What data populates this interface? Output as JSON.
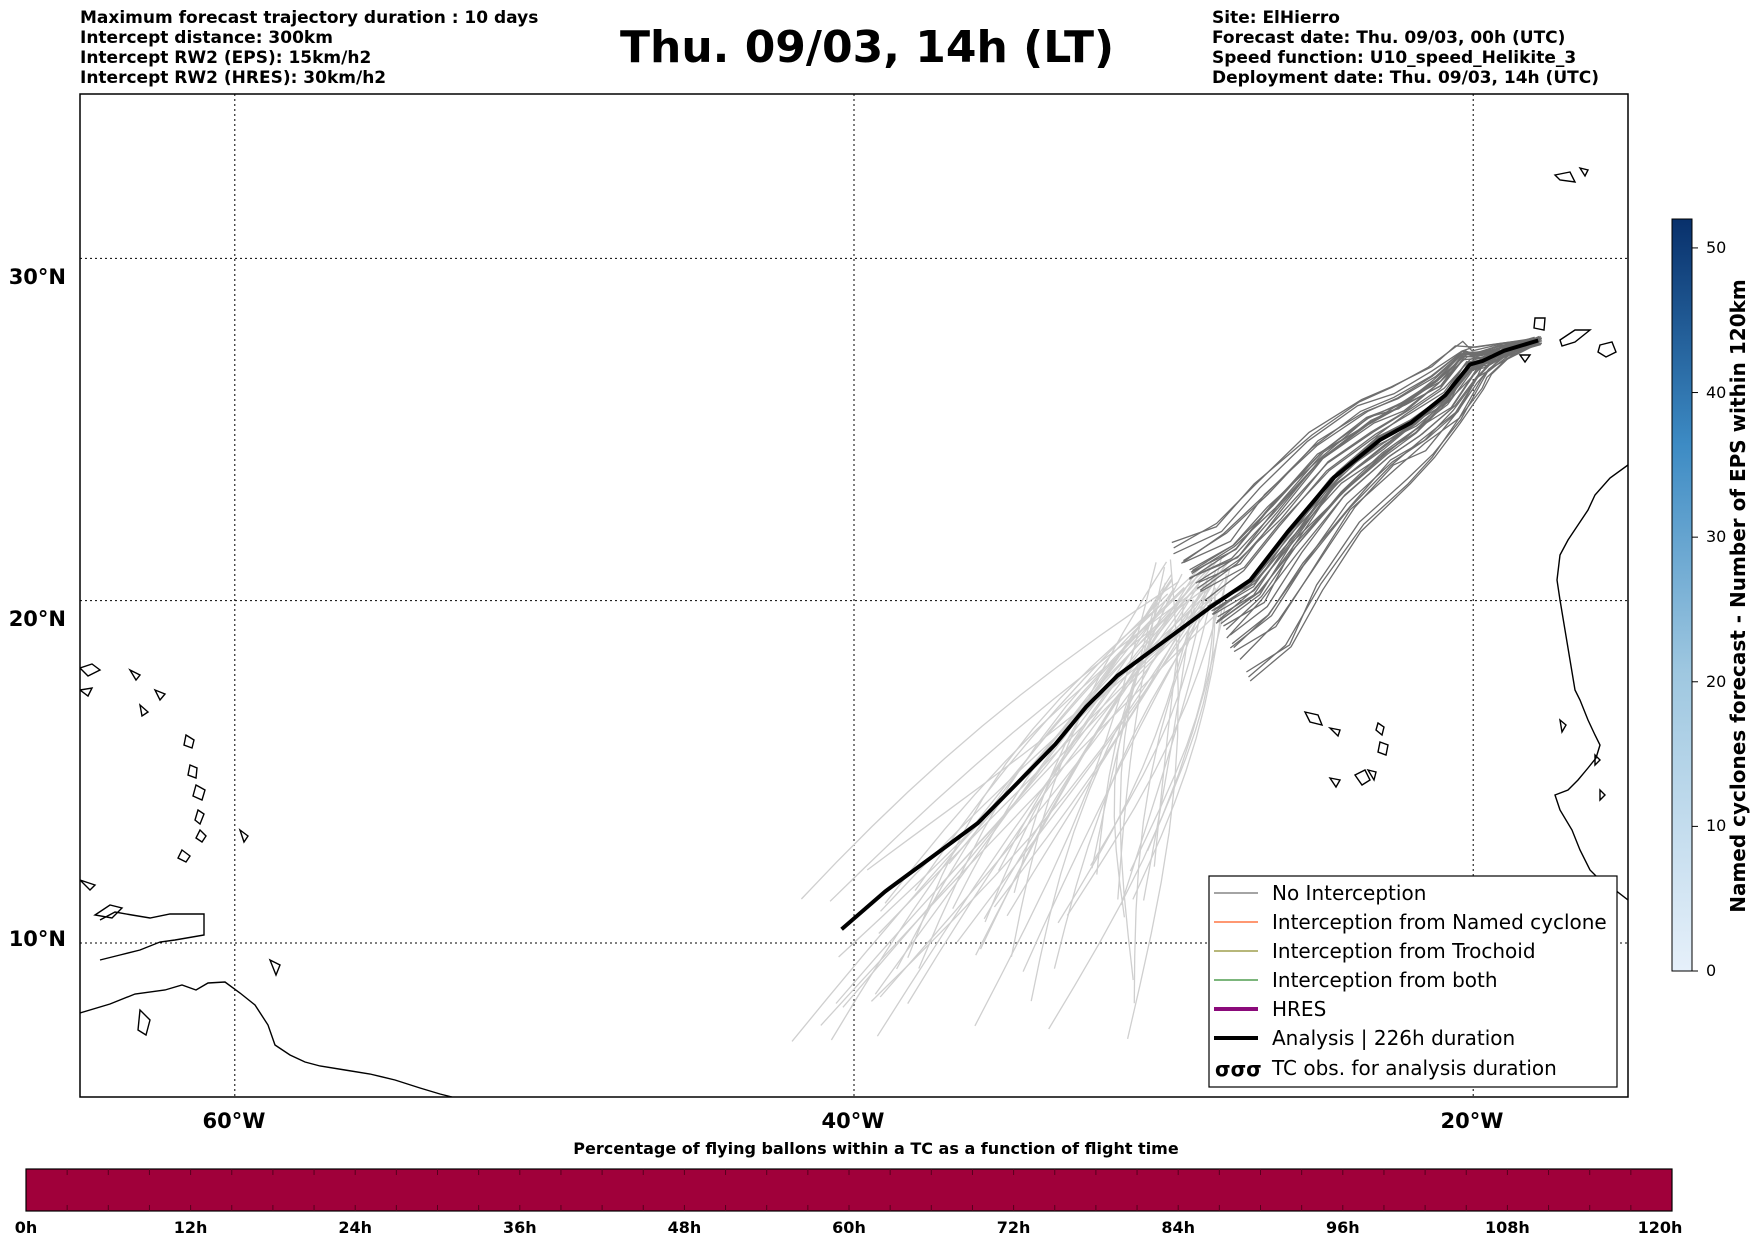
{
  "header": {
    "left": [
      "Maximum forecast trajectory duration : 10 days",
      "Intercept distance: 300km",
      "Intercept RW2 (EPS):  15km/h2",
      "Intercept RW2 (HRES): 30km/h2"
    ],
    "title": "Thu. 09/03, 14h (LT)",
    "right": [
      "Site: ElHierro",
      "Forecast date: Thu. 09/03, 00h (UTC)",
      "Speed function: U10_speed_Helikite_3",
      "Deployment date: Thu. 09/03, 14h (UTC)"
    ]
  },
  "map": {
    "lon_ticks": [
      "60°W",
      "40°W",
      "20°W"
    ],
    "lat_ticks": [
      "30°N",
      "20°N",
      "10°N"
    ],
    "lon_values": [
      -60,
      -40,
      -20
    ],
    "lat_values": [
      30,
      20,
      10
    ],
    "lon_range": [
      -65,
      -15
    ],
    "lat_range": [
      5.5,
      34.8
    ],
    "colors": {
      "no_interception": "#6e6e6e",
      "light_traj": "#cfcfcf",
      "named_cyclone": "#ff5a1f",
      "trochoid": "#8c8c2a",
      "both": "#2e8b2e",
      "hres": "#8b0a7a",
      "analysis": "#000000"
    },
    "analysis_track": [
      [
        -17.9,
        27.6
      ],
      [
        -19.0,
        27.3
      ],
      [
        -19.7,
        27.0
      ],
      [
        -20.1,
        26.9
      ],
      [
        -20.9,
        26.0
      ],
      [
        -22.0,
        25.2
      ],
      [
        -23.0,
        24.7
      ],
      [
        -24.5,
        23.6
      ],
      [
        -26.0,
        22.0
      ],
      [
        -27.2,
        20.6
      ],
      [
        -28.5,
        19.8
      ],
      [
        -30.0,
        18.8
      ],
      [
        -31.5,
        17.8
      ],
      [
        -32.5,
        16.9
      ],
      [
        -33.5,
        15.8
      ],
      [
        -34.8,
        14.6
      ],
      [
        -36.0,
        13.5
      ],
      [
        -37.5,
        12.5
      ],
      [
        -39.0,
        11.5
      ],
      [
        -40.4,
        10.4
      ]
    ]
  },
  "legend": {
    "items": [
      {
        "label": "No Interception",
        "style": "thin",
        "color": "#6e6e6e"
      },
      {
        "label": "Interception from Named cyclone",
        "style": "thin",
        "color": "#ff5a1f"
      },
      {
        "label": "Interception from Trochoid",
        "style": "thin",
        "color": "#8c8c2a"
      },
      {
        "label": "Interception from both",
        "style": "thin",
        "color": "#2e8b2e"
      },
      {
        "label": "HRES",
        "style": "thick",
        "color": "#8b0a7a"
      },
      {
        "label": "Analysis | 226h duration",
        "style": "thick",
        "color": "#000000"
      },
      {
        "label": "TC obs. for analysis duration",
        "style": "symbol",
        "color": "#000000"
      }
    ]
  },
  "colorbar": {
    "label": "Named cyclones forecast - Number of EPS within 120km",
    "ticks": [
      "0",
      "10",
      "20",
      "30",
      "40",
      "50"
    ],
    "tick_values": [
      0,
      10,
      20,
      30,
      40,
      50
    ],
    "range": [
      0,
      52
    ],
    "color_low": "#e6f0fa",
    "color_high": "#08306b"
  },
  "time_bar": {
    "title": "Percentage of flying ballons within a TC as a function of flight time",
    "labels": [
      "0h",
      "12h",
      "24h",
      "36h",
      "48h",
      "60h",
      "72h",
      "84h",
      "96h",
      "108h",
      "120h"
    ],
    "color": "#a0003a"
  }
}
